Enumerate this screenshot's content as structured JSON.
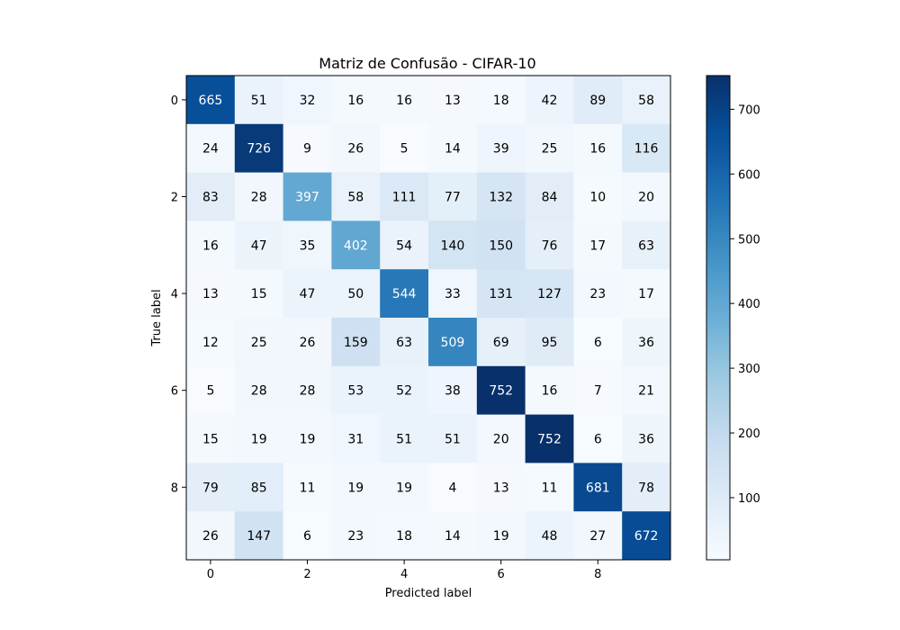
{
  "chart_data": {
    "type": "heatmap",
    "title": "Matriz de Confusão - CIFAR-10",
    "xlabel": "Predicted label",
    "ylabel": "True label",
    "x_tick_labels": [
      "0",
      "2",
      "4",
      "6",
      "8"
    ],
    "x_tick_indices": [
      0,
      2,
      4,
      6,
      8
    ],
    "y_tick_labels": [
      "0",
      "2",
      "4",
      "6",
      "8"
    ],
    "y_tick_indices": [
      0,
      2,
      4,
      6,
      8
    ],
    "colormap": "Blues",
    "value_range": [
      4,
      752
    ],
    "text_color_threshold": 376,
    "colorbar_ticks": [
      100,
      200,
      300,
      400,
      500,
      600,
      700
    ],
    "colorbar_tick_labels": [
      "100",
      "200",
      "300",
      "400",
      "500",
      "600",
      "700"
    ],
    "matrix": [
      [
        665,
        51,
        32,
        16,
        16,
        13,
        18,
        42,
        89,
        58
      ],
      [
        24,
        726,
        9,
        26,
        5,
        14,
        39,
        25,
        16,
        116
      ],
      [
        83,
        28,
        397,
        58,
        111,
        77,
        132,
        84,
        10,
        20
      ],
      [
        16,
        47,
        35,
        402,
        54,
        140,
        150,
        76,
        17,
        63
      ],
      [
        13,
        15,
        47,
        50,
        544,
        33,
        131,
        127,
        23,
        17
      ],
      [
        12,
        25,
        26,
        159,
        63,
        509,
        69,
        95,
        6,
        36
      ],
      [
        5,
        28,
        28,
        53,
        52,
        38,
        752,
        16,
        7,
        21
      ],
      [
        15,
        19,
        19,
        31,
        51,
        51,
        20,
        752,
        6,
        36
      ],
      [
        79,
        85,
        11,
        19,
        19,
        4,
        13,
        11,
        681,
        78
      ],
      [
        26,
        147,
        6,
        23,
        18,
        14,
        19,
        48,
        27,
        672
      ]
    ]
  }
}
